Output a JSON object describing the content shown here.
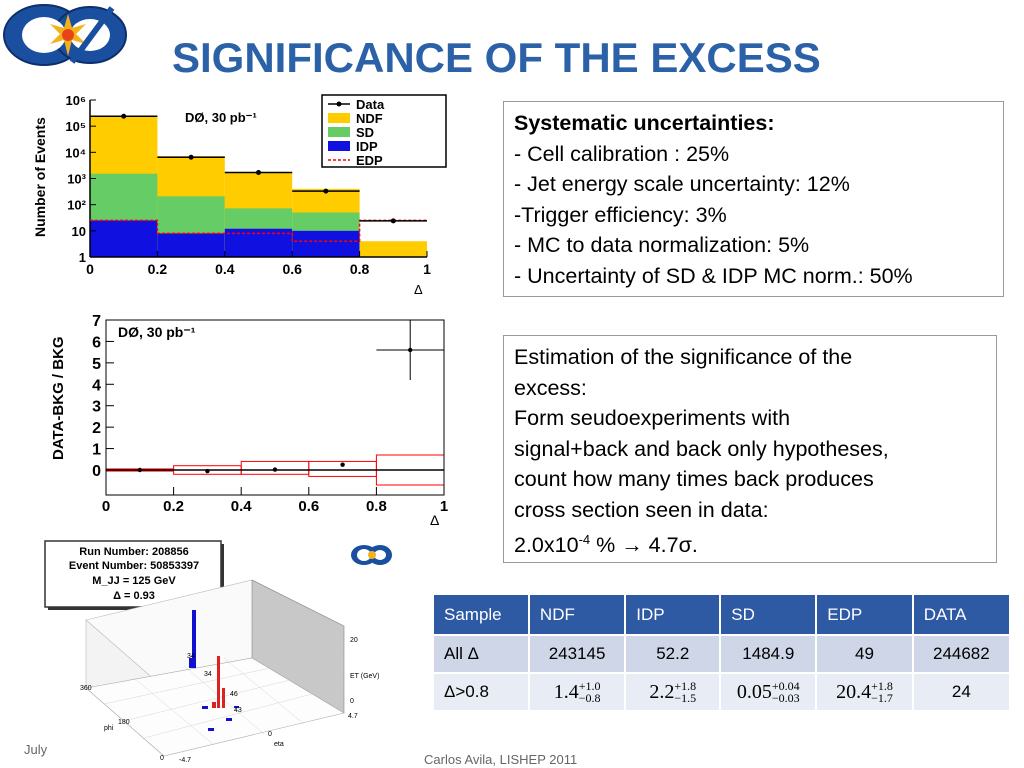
{
  "slide": {
    "title": "SIGNIFICANCE OF THE EXCESS",
    "footer": "Carlos Avila, LISHEP 2011",
    "date_partial": "July"
  },
  "logo": {
    "text": "DØ"
  },
  "systematics": {
    "heading": "Systematic uncertainties:",
    "items": [
      "- Cell calibration : 25%",
      "- Jet energy scale uncertainty: 12%",
      "-Trigger efficiency: 3%",
      "- MC to data normalization: 5%",
      "- Uncertainty of SD & IDP MC norm.: 50%"
    ]
  },
  "estimation": {
    "lines": [
      "Estimation of the significance of the",
      "excess:",
      "Form seudoexperiments with",
      "signal+back and back only hypotheses,",
      "count how many times back produces",
      "cross section seen in data:"
    ],
    "result_prefix": "2.0x10",
    "result_exp": "-4",
    "result_suffix": " % ",
    "arrow": "→",
    "result_sigma": " 4.7σ."
  },
  "table": {
    "headers": [
      "Sample",
      "NDF",
      "IDP",
      "SD",
      "EDP",
      "DATA"
    ],
    "row1": {
      "label": "All Δ",
      "values": [
        "243145",
        "52.2",
        "1484.9",
        "49",
        "244682"
      ]
    },
    "row2": {
      "label": "Δ>0.8",
      "ndf": {
        "base": "1.4",
        "up": "+1.0",
        "down": "−0.8"
      },
      "idp": {
        "base": "2.2",
        "up": "+1.8",
        "down": "−1.5"
      },
      "sd": {
        "base": "0.05",
        "up": "+0.04",
        "down": "−0.03"
      },
      "edp": {
        "base": "20.4",
        "up": "+1.8",
        "down": "−1.7"
      },
      "data": "24"
    }
  },
  "chart_data": [
    {
      "type": "bar",
      "stacked": true,
      "log_y": true,
      "annotation": "DØ, 30 pb⁻¹",
      "xlabel": "Δ",
      "ylabel": "Number of Events",
      "xlim": [
        0,
        1
      ],
      "ylim": [
        1,
        1000000
      ],
      "x_bin_edges": [
        0,
        0.2,
        0.4,
        0.6,
        0.8,
        1.0
      ],
      "x_ticks": [
        "0",
        "0.2",
        "0.4",
        "0.6",
        "0.8",
        "1"
      ],
      "y_ticks": [
        "1",
        "10",
        "10²",
        "10³",
        "10⁴",
        "10⁵",
        "10⁶"
      ],
      "legend": [
        "Data",
        "NDF",
        "SD",
        "IDP",
        "EDP"
      ],
      "legend_position": "top-right",
      "series": [
        {
          "name": "IDP",
          "color": "#1010E0",
          "values": [
            25,
            8,
            12,
            10,
            0
          ]
        },
        {
          "name": "SD",
          "color": "#66CC66",
          "values": [
            1500,
            200,
            60,
            40,
            0
          ]
        },
        {
          "name": "NDF",
          "color": "#FFCC00",
          "values": [
            240000,
            7000,
            1600,
            350,
            4
          ]
        },
        {
          "name": "EDP",
          "color": "#FF0000",
          "line_values": [
            25,
            8,
            8,
            4,
            25
          ]
        },
        {
          "name": "Data",
          "color": "#000000",
          "points_x": [
            0.1,
            0.3,
            0.5,
            0.7,
            0.9
          ],
          "points_y": [
            240000,
            6500,
            1700,
            330,
            24
          ]
        }
      ]
    },
    {
      "type": "scatter",
      "annotation": "DØ, 30 pb⁻¹",
      "xlabel": "Δ",
      "ylabel": "DATA-BKG / BKG",
      "xlim": [
        0,
        1
      ],
      "ylim": [
        0,
        7
      ],
      "x_ticks": [
        "0",
        "0.2",
        "0.4",
        "0.6",
        "0.8",
        "1"
      ],
      "y_ticks": [
        "0",
        "1",
        "2",
        "3",
        "4",
        "5",
        "6",
        "7"
      ],
      "points": [
        {
          "x": 0.1,
          "y": 0.0
        },
        {
          "x": 0.3,
          "y": -0.05
        },
        {
          "x": 0.5,
          "y": 0.02
        },
        {
          "x": 0.7,
          "y": 0.25
        },
        {
          "x": 0.9,
          "y": 5.6,
          "yerr_up": 1.4,
          "yerr_down": 1.4,
          "xerr": 0.1
        }
      ],
      "uncertainty_band": {
        "color": "#FF0000",
        "bins": [
          [
            0,
            0.2,
            -0.05,
            0.05
          ],
          [
            0.2,
            0.4,
            -0.2,
            0.2
          ],
          [
            0.4,
            0.6,
            -0.2,
            0.4
          ],
          [
            0.6,
            0.8,
            -0.3,
            0.4
          ],
          [
            0.8,
            1.0,
            -0.7,
            0.7
          ]
        ]
      }
    }
  ],
  "event_display": {
    "info": [
      "Run Number: 208856",
      "Event Number: 50853397",
      "M_JJ = 125 GeV",
      "Δ = 0.93"
    ],
    "axis_phi": "phi",
    "axis_eta": "eta",
    "axis_et": "ET (GeV)",
    "phi_ticks": [
      "360",
      "180",
      "0"
    ],
    "eta_ticks": [
      "-4.7",
      "0",
      "4.7"
    ],
    "et_ticks": [
      "20",
      "0"
    ],
    "labels": [
      "34",
      "34",
      "43",
      "46"
    ]
  }
}
